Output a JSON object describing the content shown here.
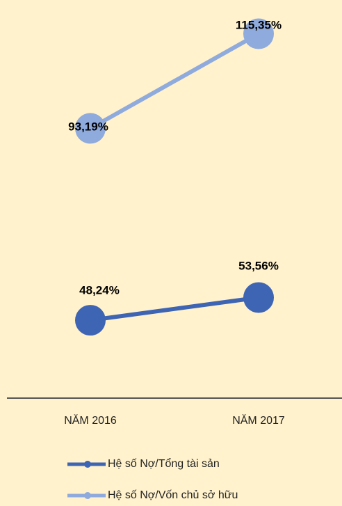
{
  "chart_data": {
    "type": "line",
    "categories": [
      "NĂM 2016",
      "NĂM 2017"
    ],
    "series": [
      {
        "name": "Hệ số Nợ/Tổng tài sản",
        "color": "#3e64b4",
        "values": [
          48.24,
          53.56
        ],
        "value_labels": [
          "48,24%",
          "53,56%"
        ]
      },
      {
        "name": "Hệ số Nợ/Vốn chủ sở hữu",
        "color": "#8faadc",
        "values": [
          93.19,
          115.35
        ],
        "value_labels": [
          "93,19%",
          "115,35%"
        ]
      }
    ],
    "ylim": [
      30,
      120
    ],
    "legend": "bottom"
  }
}
